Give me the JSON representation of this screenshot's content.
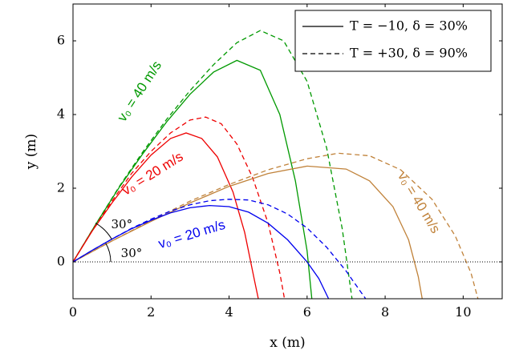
{
  "chart_data": {
    "type": "line",
    "xlabel": "x (m)",
    "ylabel": "y (m)",
    "xlim": [
      0,
      11
    ],
    "ylim": [
      -1,
      7
    ],
    "xticks": [
      0,
      2,
      4,
      6,
      8,
      10
    ],
    "yticks": [
      0,
      2,
      4,
      6
    ],
    "legend": {
      "position": "top-right",
      "entries": [
        {
          "style": "solid",
          "label": "T = −10, δ = 30%"
        },
        {
          "style": "dashed",
          "label": "T = +30, δ = 90%"
        }
      ]
    },
    "series": [
      {
        "name": "v0 = 40 m/s, 60°, solid",
        "color": "#009900",
        "style": "solid",
        "x": [
          0,
          0.6,
          1.2,
          1.8,
          2.4,
          3.0,
          3.6,
          4.2,
          4.8,
          5.3,
          5.7,
          6.0,
          6.12
        ],
        "y": [
          0,
          1.05,
          2.05,
          2.95,
          3.8,
          4.55,
          5.15,
          5.47,
          5.2,
          4.0,
          2.2,
          0.3,
          -1.0
        ]
      },
      {
        "name": "v0 = 40 m/s, 60°, dashed",
        "color": "#009900",
        "style": "dashed",
        "x": [
          0,
          0.6,
          1.2,
          1.8,
          2.4,
          3.0,
          3.6,
          4.2,
          4.8,
          5.4,
          6.0,
          6.5,
          6.9,
          7.15
        ],
        "y": [
          0,
          1.05,
          2.07,
          3.0,
          3.87,
          4.65,
          5.35,
          5.95,
          6.28,
          6.0,
          4.9,
          3.1,
          0.9,
          -1.0
        ]
      },
      {
        "name": "v0 = 20 m/s, 60°, solid",
        "color": "#ee0000",
        "style": "solid",
        "x": [
          0,
          0.5,
          1.0,
          1.5,
          2.0,
          2.5,
          2.9,
          3.3,
          3.7,
          4.1,
          4.4,
          4.65,
          4.75
        ],
        "y": [
          0,
          0.85,
          1.6,
          2.3,
          2.9,
          3.35,
          3.5,
          3.35,
          2.85,
          1.9,
          0.8,
          -0.5,
          -1.0
        ]
      },
      {
        "name": "v0 = 20 m/s, 60°, dashed",
        "color": "#ee0000",
        "style": "dashed",
        "x": [
          0,
          0.5,
          1.0,
          1.5,
          2.0,
          2.5,
          3.0,
          3.4,
          3.8,
          4.2,
          4.6,
          5.0,
          5.3,
          5.42
        ],
        "y": [
          0,
          0.86,
          1.65,
          2.4,
          3.0,
          3.5,
          3.85,
          3.93,
          3.75,
          3.2,
          2.3,
          1.05,
          -0.3,
          -1.0
        ]
      },
      {
        "name": "v0 = 40 m/s, 30°, solid",
        "color": "#c0823a",
        "style": "solid",
        "x": [
          0,
          1.0,
          2.0,
          3.0,
          4.0,
          5.0,
          6.0,
          7.0,
          7.6,
          8.2,
          8.6,
          8.85,
          8.95
        ],
        "y": [
          0,
          0.57,
          1.1,
          1.6,
          2.05,
          2.4,
          2.6,
          2.52,
          2.2,
          1.5,
          0.6,
          -0.4,
          -1.0
        ]
      },
      {
        "name": "v0 = 40 m/s, 30°, dashed",
        "color": "#c0823a",
        "style": "dashed",
        "x": [
          0,
          1.0,
          2.0,
          3.0,
          4.0,
          5.0,
          6.0,
          6.8,
          7.6,
          8.4,
          9.2,
          9.8,
          10.2,
          10.38
        ],
        "y": [
          0,
          0.57,
          1.12,
          1.65,
          2.1,
          2.5,
          2.8,
          2.95,
          2.88,
          2.5,
          1.7,
          0.7,
          -0.3,
          -1.0
        ]
      },
      {
        "name": "v0 = 20 m/s, 30°, solid",
        "color": "#0000ee",
        "style": "solid",
        "x": [
          0,
          0.5,
          1.0,
          1.5,
          2.0,
          2.5,
          3.0,
          3.5,
          4.0,
          4.5,
          5.0,
          5.5,
          6.0,
          6.3,
          6.55
        ],
        "y": [
          0,
          0.32,
          0.62,
          0.9,
          1.13,
          1.33,
          1.47,
          1.53,
          1.5,
          1.35,
          1.05,
          0.6,
          0.0,
          -0.45,
          -1.0
        ]
      },
      {
        "name": "v0 = 20 m/s, 30°, dashed",
        "color": "#0000ee",
        "style": "dashed",
        "x": [
          0,
          0.5,
          1.0,
          1.5,
          2.0,
          2.5,
          3.0,
          3.5,
          4.0,
          4.5,
          5.0,
          5.5,
          6.0,
          6.5,
          7.0,
          7.3,
          7.5
        ],
        "y": [
          0,
          0.32,
          0.62,
          0.91,
          1.16,
          1.38,
          1.55,
          1.66,
          1.7,
          1.68,
          1.55,
          1.3,
          0.92,
          0.4,
          -0.25,
          -0.7,
          -1.0
        ]
      }
    ],
    "annotations": [
      {
        "text": "v₀ = 40 m/s",
        "color": "#009900",
        "x": 1.72,
        "y": 4.62,
        "rotation": -57
      },
      {
        "text": "v₀ = 20 m/s",
        "color": "#ee0000",
        "x": 2.05,
        "y": 2.38,
        "rotation": -32
      },
      {
        "text": "v₀ = 20 m/s",
        "color": "#0000ee",
        "x": 3.05,
        "y": 0.73,
        "rotation": -17
      },
      {
        "text": "v₀ = 40 m/s",
        "color": "#c0823a",
        "x": 8.85,
        "y": 1.6,
        "rotation": 59
      }
    ],
    "angle_labels": [
      {
        "text": "30°",
        "x": 1.25,
        "y": 1.0
      },
      {
        "text": "30°",
        "x": 1.5,
        "y": 0.22
      }
    ]
  }
}
